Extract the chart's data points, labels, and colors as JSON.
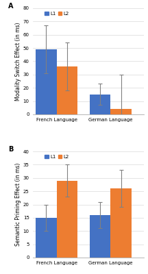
{
  "panel_A": {
    "title": "A",
    "ylabel": "Modality Switch Effect (in ms)",
    "ylim": [
      0,
      80
    ],
    "yticks": [
      0,
      10,
      20,
      30,
      40,
      50,
      60,
      70,
      80
    ],
    "groups": [
      "French Language",
      "German Language"
    ],
    "L1_values": [
      49,
      15
    ],
    "L2_values": [
      36,
      4
    ],
    "L1_errors": [
      18,
      8
    ],
    "L2_errors": [
      18,
      26
    ],
    "L1_color": "#4472C4",
    "L2_color": "#ED7D31"
  },
  "panel_B": {
    "title": "B",
    "ylabel": "Semantic Priming Effect (in ms)",
    "ylim": [
      0,
      40
    ],
    "yticks": [
      0,
      5,
      10,
      15,
      20,
      25,
      30,
      35,
      40
    ],
    "groups": [
      "French Language",
      "German Language"
    ],
    "L1_values": [
      15,
      16
    ],
    "L2_values": [
      29,
      26
    ],
    "L1_errors": [
      5,
      5
    ],
    "L2_errors": [
      6,
      7
    ],
    "L1_color": "#4472C4",
    "L2_color": "#ED7D31"
  },
  "legend_labels": [
    "L1",
    "L2"
  ],
  "bar_width": 0.35,
  "background_color": "#FFFFFF",
  "grid_color": "#D9D9D9",
  "tick_fontsize": 5,
  "label_fontsize": 5.5,
  "title_fontsize": 7,
  "legend_fontsize": 5
}
